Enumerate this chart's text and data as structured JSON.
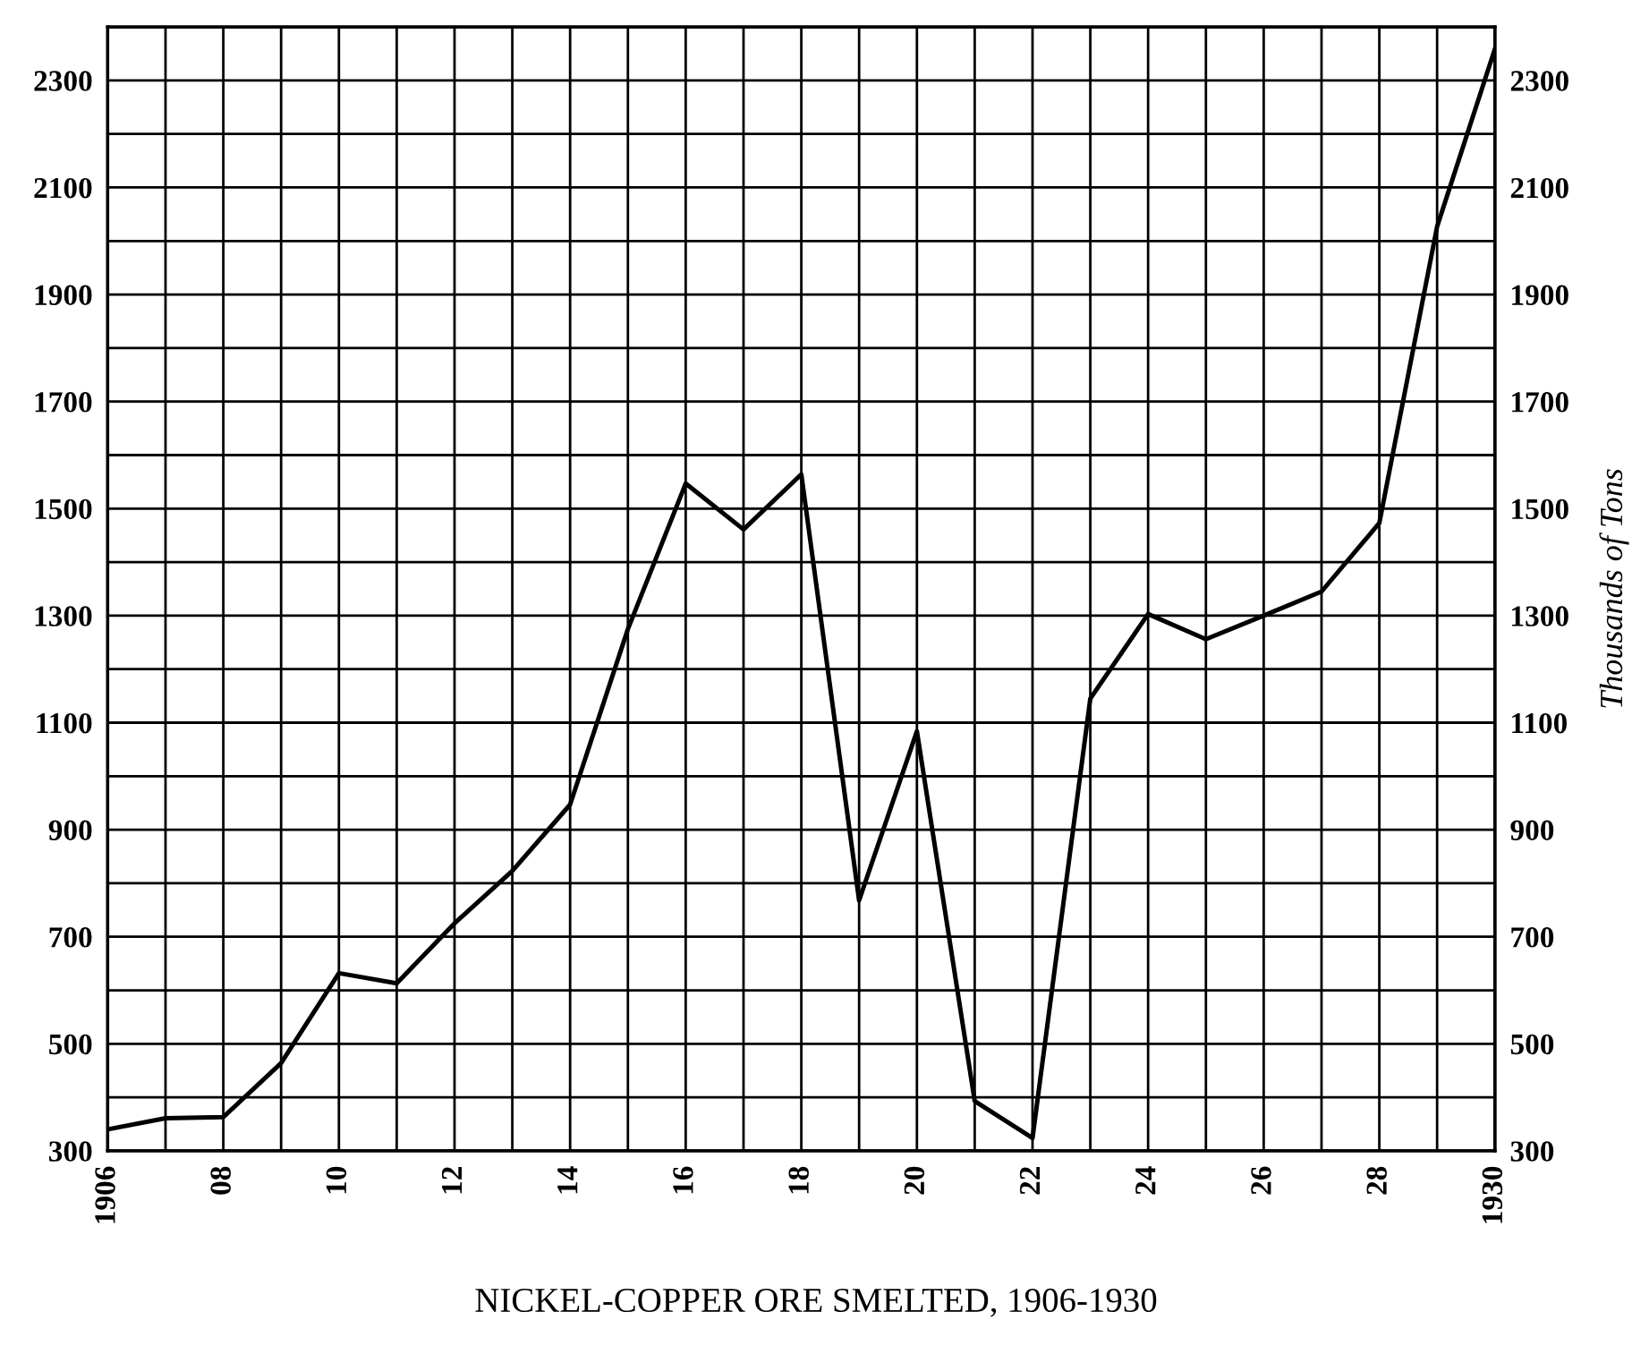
{
  "chart_data": {
    "type": "line",
    "title": "NICKEL-COPPER ORE SMELTED, 1906-1930",
    "y2label": "Thousands of Tons",
    "x": [
      1906,
      1907,
      1908,
      1909,
      1910,
      1911,
      1912,
      1913,
      1914,
      1915,
      1916,
      1917,
      1918,
      1919,
      1920,
      1921,
      1922,
      1923,
      1924,
      1925,
      1926,
      1927,
      1928,
      1929,
      1930
    ],
    "series": [
      {
        "color": "#000000",
        "values": [
          340,
          361,
          363,
          464,
          632,
          613,
          725,
          823,
          947,
          1275,
          1547,
          1461,
          1564,
          768,
          1084,
          393,
          324,
          1145,
          1303,
          1256,
          1300,
          1345,
          1473,
          2027,
          2359
        ]
      }
    ],
    "xlim": [
      1906,
      1930
    ],
    "xticks": [
      1906,
      {
        "value": 1907,
        "label": null
      },
      {
        "value": 1908,
        "label": "08"
      },
      {
        "value": 1909,
        "label": null
      },
      {
        "value": 1910,
        "label": "10"
      },
      {
        "value": 1911,
        "label": null
      },
      {
        "value": 1912,
        "label": "12"
      },
      {
        "value": 1913,
        "label": null
      },
      {
        "value": 1914,
        "label": "14"
      },
      {
        "value": 1915,
        "label": null
      },
      {
        "value": 1916,
        "label": "16"
      },
      {
        "value": 1917,
        "label": null
      },
      {
        "value": 1918,
        "label": "18"
      },
      {
        "value": 1919,
        "label": null
      },
      {
        "value": 1920,
        "label": "20"
      },
      {
        "value": 1921,
        "label": null
      },
      {
        "value": 1922,
        "label": "22"
      },
      {
        "value": 1923,
        "label": null
      },
      {
        "value": 1924,
        "label": "24"
      },
      {
        "value": 1925,
        "label": null
      },
      {
        "value": 1926,
        "label": "26"
      },
      {
        "value": 1927,
        "label": null
      },
      {
        "value": 1928,
        "label": "28"
      },
      {
        "value": 1929,
        "label": null
      },
      1930
    ],
    "ylim": [
      300,
      2400
    ],
    "yticks": [
      300,
      {
        "value": 400,
        "label": null
      },
      500,
      {
        "value": 600,
        "label": null
      },
      700,
      {
        "value": 800,
        "label": null
      },
      900,
      {
        "value": 1000,
        "label": null
      },
      1100,
      {
        "value": 1200,
        "label": null
      },
      1300,
      {
        "value": 1400,
        "label": null
      },
      1500,
      {
        "value": 1600,
        "label": null
      },
      1700,
      {
        "value": 1800,
        "label": null
      },
      1900,
      {
        "value": 2000,
        "label": null
      },
      2100,
      {
        "value": 2200,
        "label": null
      },
      2300,
      {
        "value": 2400,
        "label": null
      }
    ],
    "y2lim": [
      300,
      2400
    ],
    "y2ticks": [
      300,
      {
        "value": 400,
        "label": null
      },
      500,
      {
        "value": 600,
        "label": null
      },
      700,
      {
        "value": 800,
        "label": null
      },
      900,
      {
        "value": 1000,
        "label": null
      },
      1100,
      {
        "value": 1200,
        "label": null
      },
      1300,
      {
        "value": 1400,
        "label": null
      },
      1500,
      {
        "value": 1600,
        "label": null
      },
      1700,
      {
        "value": 1800,
        "label": null
      },
      1900,
      {
        "value": 2000,
        "label": null
      },
      2100,
      {
        "value": 2200,
        "label": null
      },
      2300,
      {
        "value": 2400,
        "label": null
      }
    ],
    "grid": true,
    "line_style": "solid",
    "marker": "none"
  }
}
